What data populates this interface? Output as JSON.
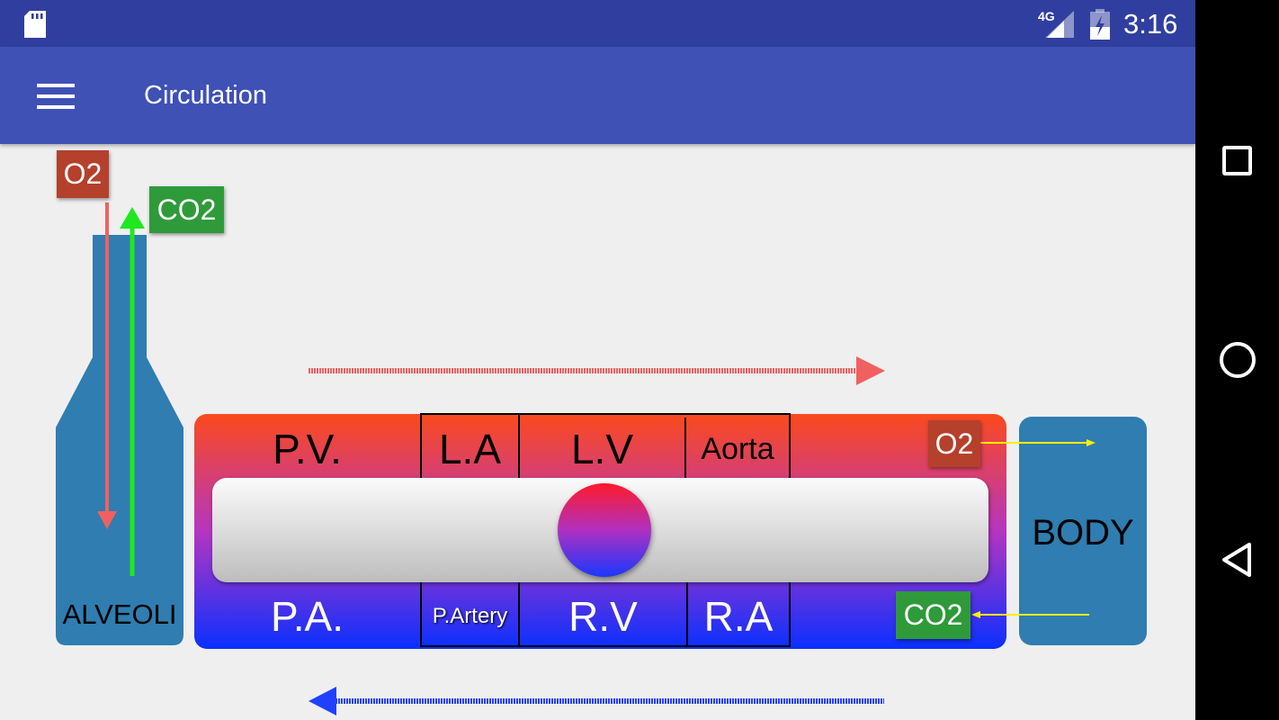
{
  "status_bar": {
    "network": "4G",
    "time": "3:16",
    "icons": [
      "sd-card-icon",
      "signal-icon",
      "battery-charging-icon"
    ]
  },
  "app_bar": {
    "title": "Circulation",
    "menu_icon": "hamburger-menu-icon"
  },
  "diagram": {
    "alveoli": "ALVEOLI",
    "body": "BODY",
    "top_o2": "O2",
    "top_co2": "CO2",
    "body_o2": "O2",
    "body_co2": "CO2",
    "top_row": [
      "P.V.",
      "L.A",
      "L.V",
      "Aorta"
    ],
    "bottom_row": [
      "P.A.",
      "P.Artery",
      "R.V",
      "R.A"
    ]
  },
  "colors": {
    "o2": "#b5402c",
    "co2": "#2f9a3a",
    "organ": "#2f7db1",
    "arterial": "#fb4a1c",
    "venous": "#0a30ff"
  },
  "nav_bar": [
    "recent-apps-icon",
    "home-icon",
    "back-icon"
  ]
}
